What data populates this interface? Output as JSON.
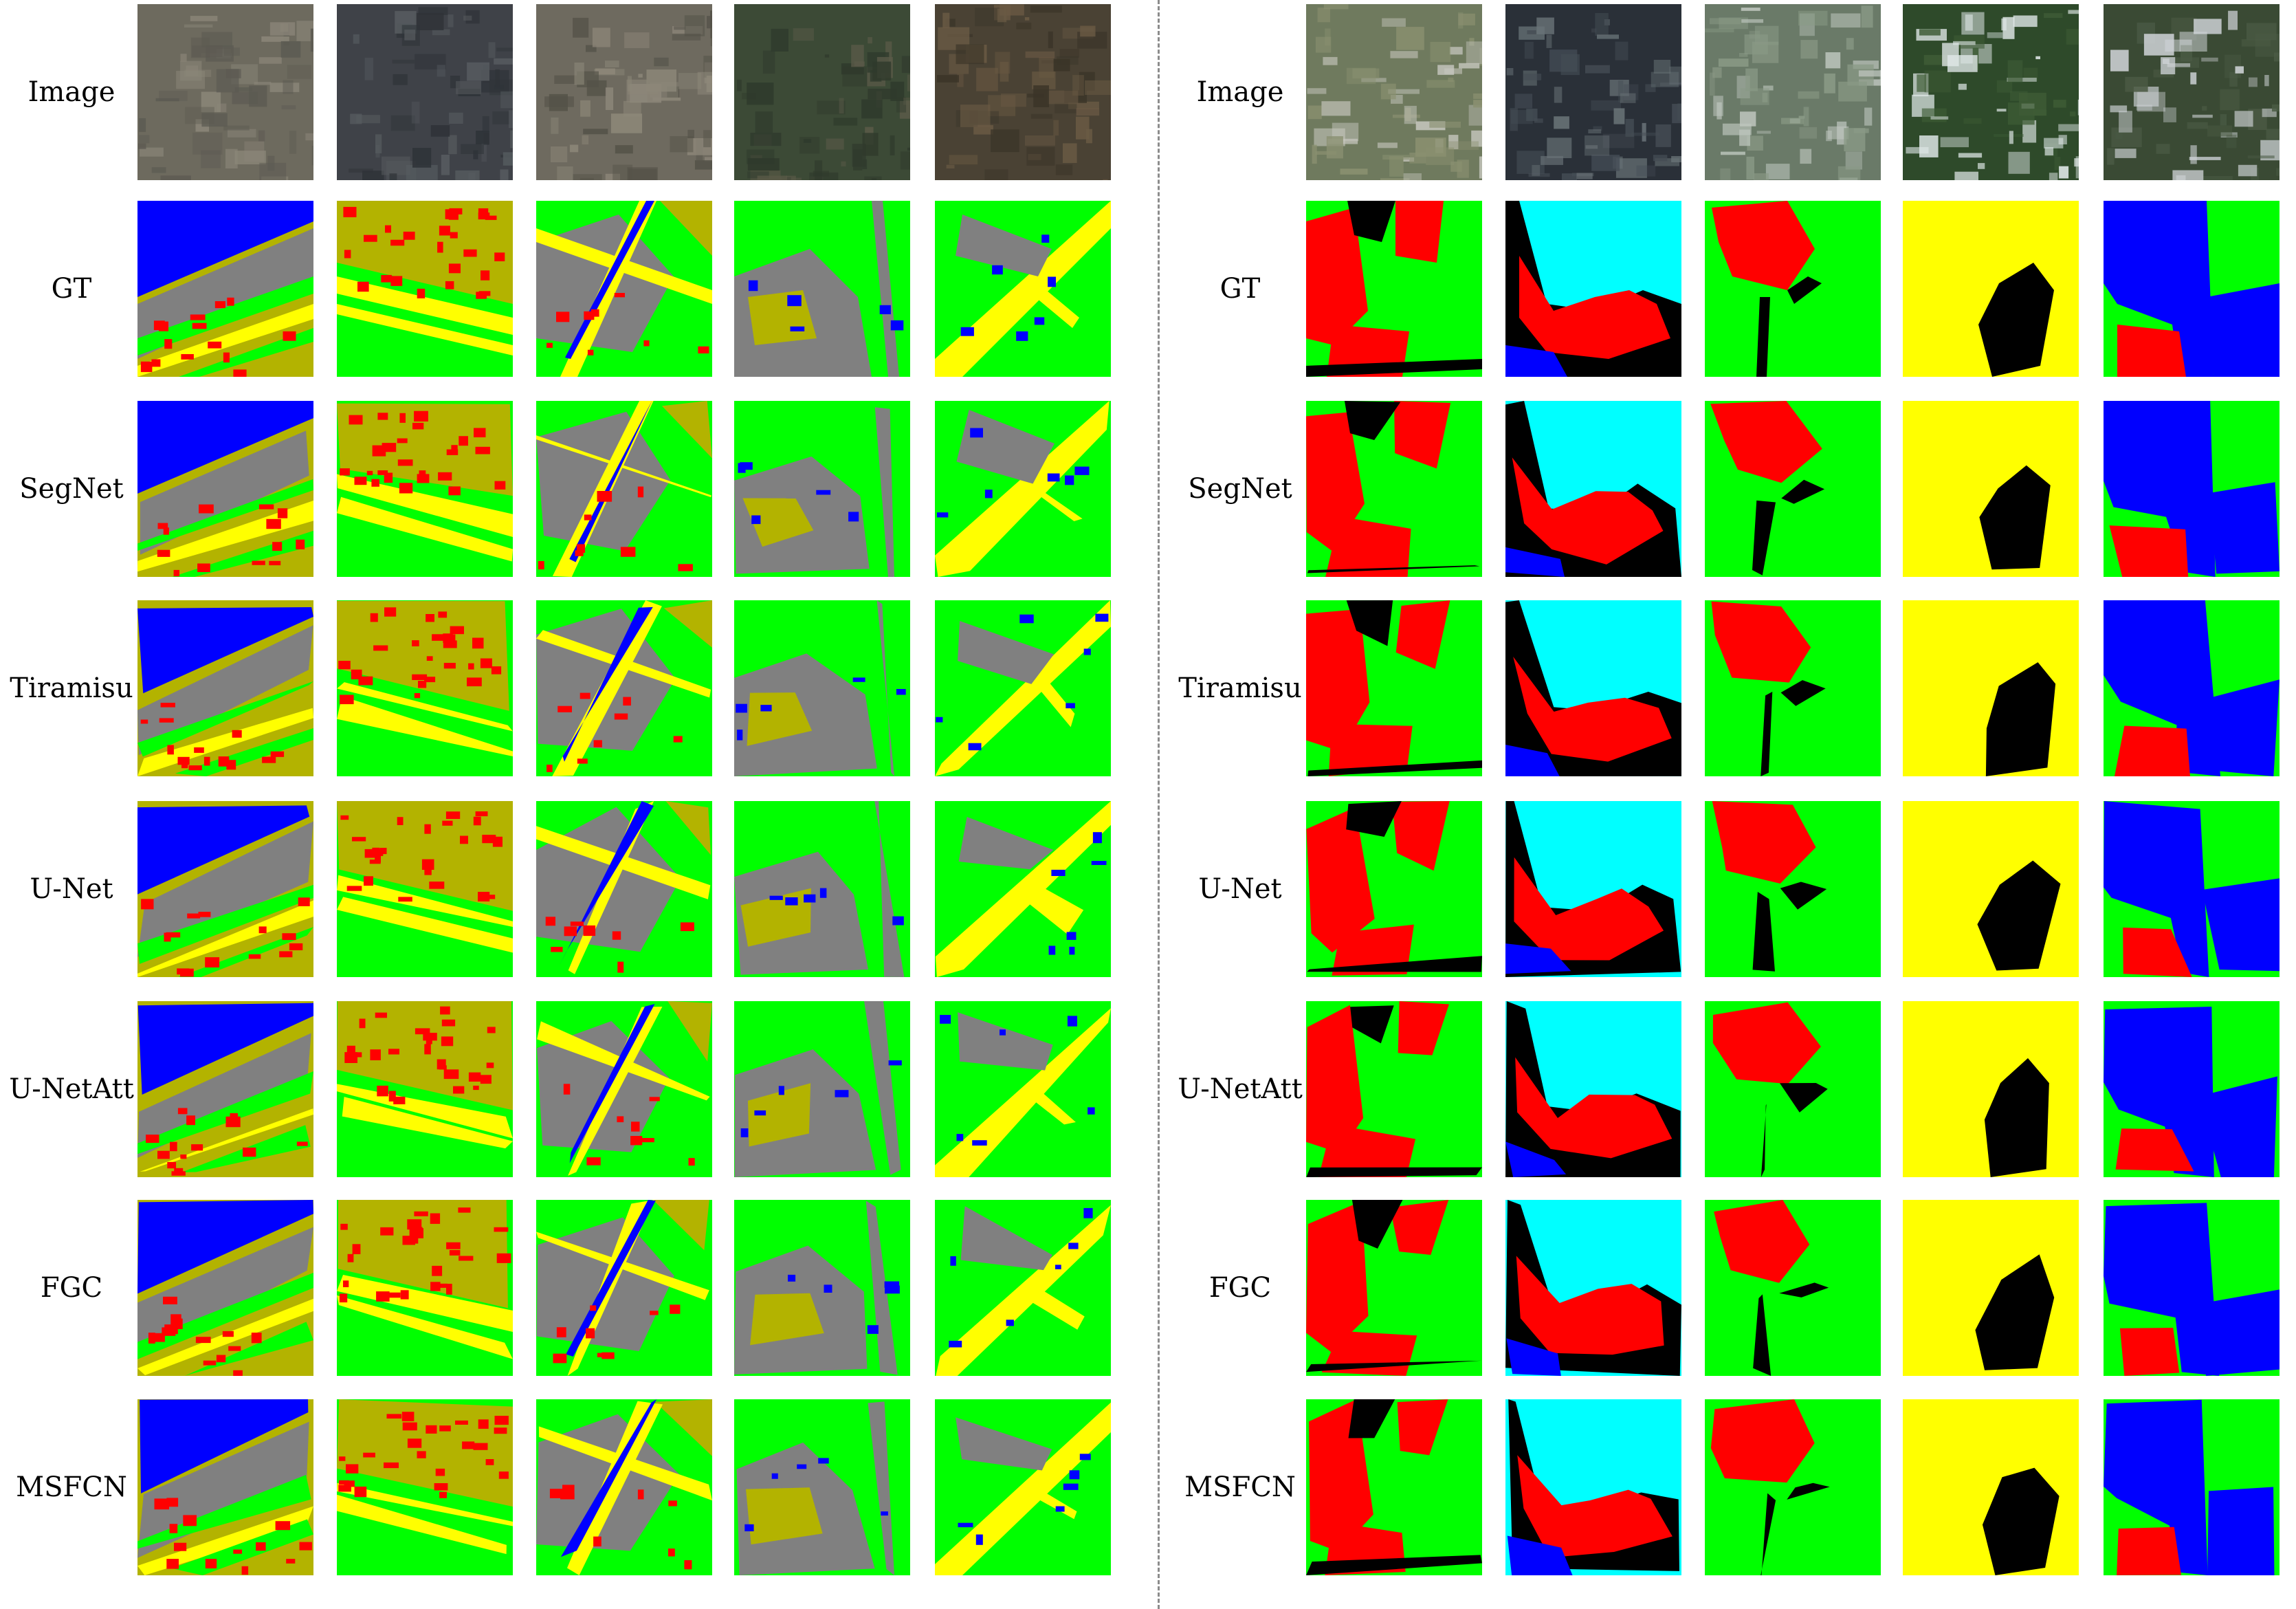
{
  "figure": {
    "row_labels": [
      "Image",
      "GT",
      "SegNet",
      "Tiramisu",
      "U-Net",
      "U-NetAtt",
      "FGC",
      "MSFCN"
    ],
    "panels": [
      {
        "name": "left-panel",
        "row_labels": [
          "Image",
          "GT",
          "SegNet",
          "Tiramisu",
          "U-Net",
          "U-NetAtt",
          "FGC",
          "MSFCN"
        ],
        "samples": 5
      },
      {
        "name": "right-panel",
        "row_labels": [
          "Image",
          "GT",
          "SegNet",
          "Tiramisu",
          "U-Net",
          "U-NetAtt",
          "FGC",
          "MSFCN"
        ],
        "samples": 5
      }
    ],
    "class_colors": {
      "water": "#0000ff",
      "building": "#ff0000",
      "road": "#ffff00",
      "vegetation": "#00ff00",
      "bare": "#808080",
      "farmland": "#b3b300",
      "cloud": "#00ffff",
      "background": "#000000"
    }
  }
}
